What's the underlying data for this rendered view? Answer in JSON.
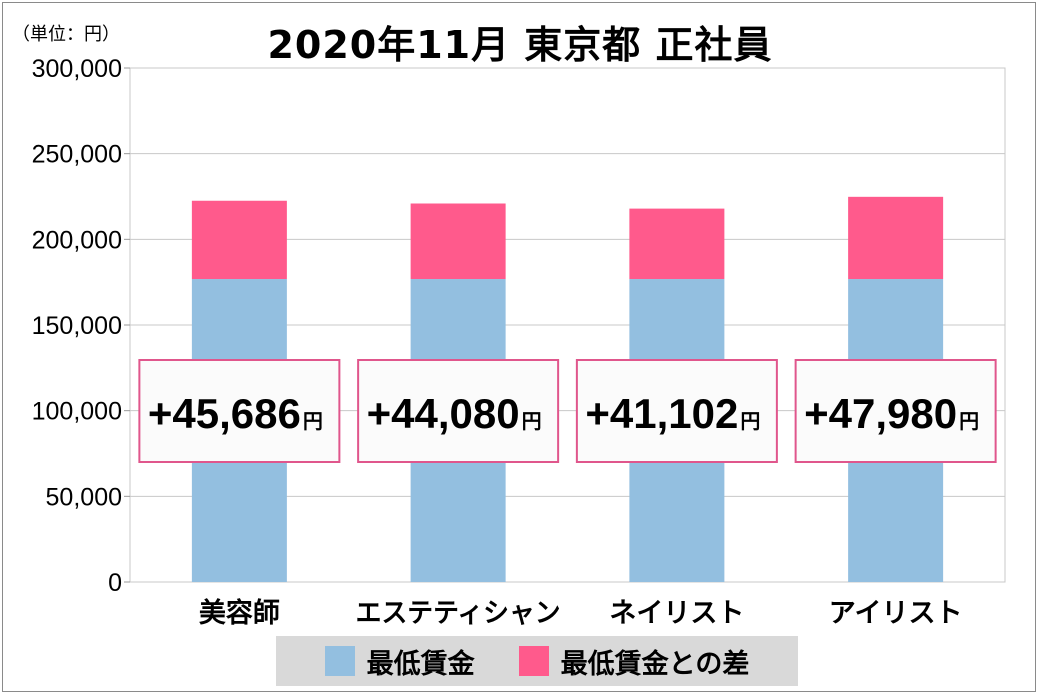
{
  "unit_label": "（単位：円）",
  "title": "2020年11月 東京都 正社員",
  "colors": {
    "minimum_wage": "#93bfe0",
    "difference": "#ff5a8c",
    "box_border": "#e0568c",
    "grid": "#c8c8c8"
  },
  "legend": {
    "minimum_wage": "最低賃金",
    "difference": "最低賃金との差"
  },
  "chart_data": {
    "type": "bar",
    "stacked": true,
    "title": "2020年11月 東京都 正社員",
    "ylim": [
      0,
      300000
    ],
    "yticks": [
      0,
      50000,
      100000,
      150000,
      200000,
      250000,
      300000
    ],
    "ytick_labels": [
      "0",
      "50,000",
      "100,000",
      "150,000",
      "200,000",
      "250,000",
      "300,000"
    ],
    "grid": true,
    "legend_position": "bottom",
    "categories": [
      "美容師",
      "エステティシャン",
      "ネイリスト",
      "アイリスト"
    ],
    "series": [
      {
        "name": "最低賃金",
        "values": [
          176832,
          176832,
          176832,
          176832
        ]
      },
      {
        "name": "最低賃金との差",
        "values": [
          45686,
          44080,
          41102,
          47980
        ]
      }
    ],
    "annotations": [
      {
        "value": "+45,686",
        "unit": "円"
      },
      {
        "value": "+44,080",
        "unit": "円"
      },
      {
        "value": "+41,102",
        "unit": "円"
      },
      {
        "value": "+47,980",
        "unit": "円"
      }
    ]
  }
}
